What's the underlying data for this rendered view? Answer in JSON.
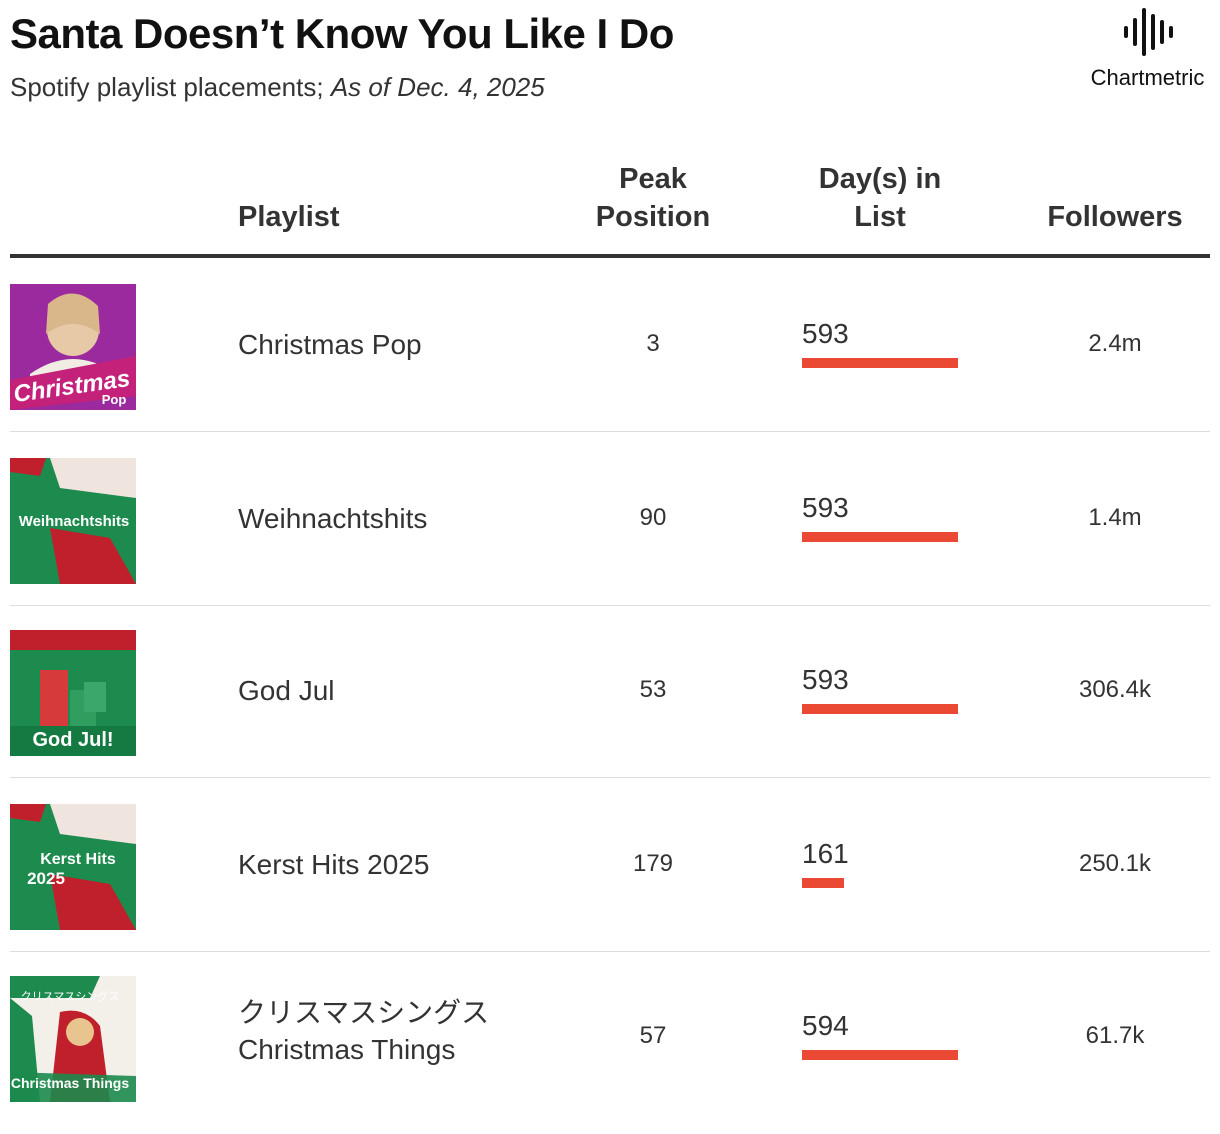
{
  "title": "Santa Doesn’t Know You Like I Do",
  "subtitle": "Spotify playlist placements;",
  "subtitle_date": "As of Dec. 4, 2025",
  "logo": {
    "icon": "waveform-icon",
    "text": "Chartmetric"
  },
  "columns": {
    "playlist": "Playlist",
    "peak_line1": "Peak",
    "peak_line2": "Position",
    "days_line1": "Day(s) in",
    "days_line2": "List",
    "followers": "Followers"
  },
  "colors": {
    "bar": "#ea4a34",
    "text": "#333333"
  },
  "chart_data": {
    "type": "table",
    "columns": [
      "Playlist",
      "Peak Position",
      "Day(s) in List",
      "Followers"
    ],
    "rows": [
      {
        "cover_text": "Christmas",
        "cover_text2": "Pop",
        "name": "Christmas Pop",
        "name2": "",
        "peak": "3",
        "days": 593,
        "days_label": "593",
        "followers": "2.4m"
      },
      {
        "cover_text": "Weihnachtshits",
        "cover_text2": "",
        "name": "Weihnachtshits",
        "name2": "",
        "peak": "90",
        "days": 593,
        "days_label": "593",
        "followers": "1.4m"
      },
      {
        "cover_text": "God Jul!",
        "cover_text2": "",
        "name": "God Jul",
        "name2": "",
        "peak": "53",
        "days": 593,
        "days_label": "593",
        "followers": "306.4k"
      },
      {
        "cover_text": "Kerst Hits",
        "cover_text2": "2025",
        "name": "Kerst Hits 2025",
        "name2": "",
        "peak": "179",
        "days": 161,
        "days_label": "161",
        "followers": "250.1k"
      },
      {
        "cover_text": "クリスマスシングス",
        "cover_text2": "Christmas Things",
        "name": "クリスマスシングス",
        "name2": "Christmas Things",
        "peak": "57",
        "days": 594,
        "days_label": "594",
        "followers": "61.7k"
      }
    ]
  }
}
